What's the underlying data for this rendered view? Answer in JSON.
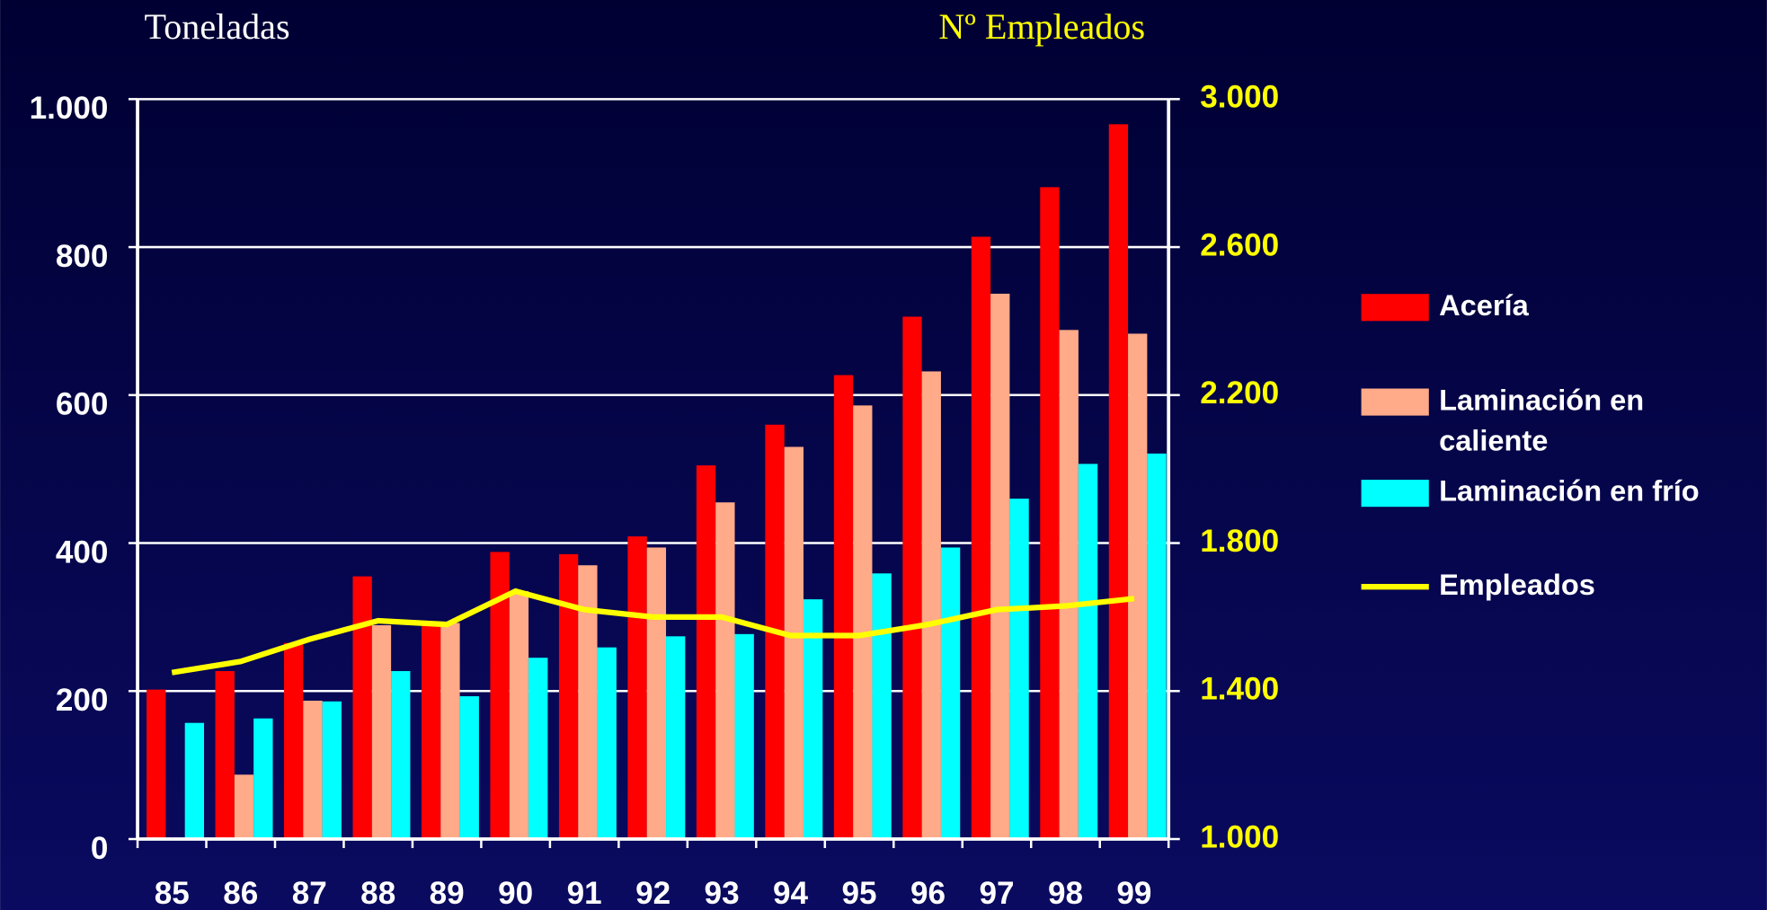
{
  "chart_data": {
    "type": "bar",
    "y_label": "Toneladas",
    "y2_label": "Nº Empleados",
    "categories": [
      "85",
      "86",
      "87",
      "88",
      "89",
      "90",
      "91",
      "92",
      "93",
      "94",
      "95",
      "96",
      "97",
      "98",
      "99"
    ],
    "series": [
      {
        "name": "Acería",
        "color": "#ff0000",
        "values": [
          202,
          227,
          265,
          355,
          288,
          388,
          385,
          409,
          505,
          560,
          627,
          706,
          814,
          881,
          966
        ]
      },
      {
        "name": "Laminación en caliente",
        "color": "#ffaa88",
        "values": [
          null,
          87,
          187,
          289,
          292,
          335,
          370,
          394,
          455,
          530,
          586,
          632,
          737,
          688,
          683
        ]
      },
      {
        "name": "Laminación en frío",
        "color": "#00ffff",
        "values": [
          157,
          163,
          186,
          227,
          193,
          245,
          259,
          274,
          277,
          324,
          359,
          394,
          460,
          507,
          521
        ]
      },
      {
        "name": "Empleados",
        "color": "#ffff00",
        "type": "line",
        "axis": "y2",
        "values": [
          1450,
          1480,
          1540,
          1590,
          1580,
          1670,
          1620,
          1600,
          1600,
          1550,
          1550,
          1580,
          1620,
          1630,
          1650
        ]
      }
    ],
    "ylim": [
      0,
      1000
    ],
    "yticks": [
      0,
      200,
      400,
      600,
      800,
      {
        "value": 1000,
        "label": "1.000"
      }
    ],
    "y2lim": [
      1000,
      3000
    ],
    "y2ticks": [
      {
        "value": 1000,
        "label": "1.000"
      },
      {
        "value": 1400,
        "label": "1.400"
      },
      {
        "value": 1800,
        "label": "1.800"
      },
      {
        "value": 2200,
        "label": "2.200"
      },
      {
        "value": 2600,
        "label": "2.600"
      },
      {
        "value": 3000,
        "label": "3.000"
      }
    ],
    "grid": true,
    "legend": "right"
  }
}
